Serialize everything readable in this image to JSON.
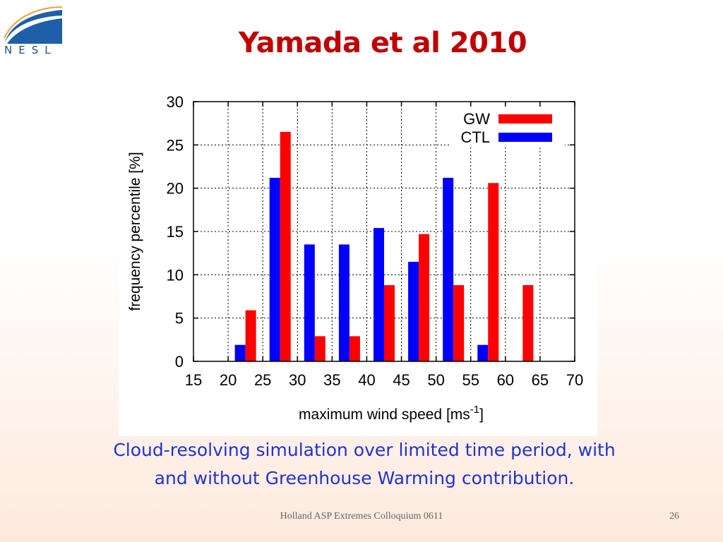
{
  "logo": {
    "text": "NESL"
  },
  "slide": {
    "title": "Yamada et al 2010",
    "caption_line1": "Cloud-resolving simulation over limited time period, with",
    "caption_line2": "and without Greenhouse Warming contribution.",
    "footer": "Holland ASP Extremes Colloquium 0611",
    "page_number": "26"
  },
  "colors": {
    "title": "#c00000",
    "caption": "#2233cc",
    "gw": "#ff0000",
    "ctl": "#0000ff"
  },
  "chart_data": {
    "type": "bar",
    "title": "",
    "xlabel": "maximum wind speed [ms",
    "xlabel_superscript": "-1",
    "xlabel_suffix": "]",
    "ylabel": "frequency percentile [%]",
    "xlim": [
      15,
      70
    ],
    "ylim": [
      0,
      30
    ],
    "xticks": [
      15,
      20,
      25,
      30,
      35,
      40,
      45,
      50,
      55,
      60,
      65,
      70
    ],
    "yticks": [
      0,
      5,
      10,
      15,
      20,
      25,
      30
    ],
    "grid": true,
    "legend_position": "top-right",
    "bin_centers": [
      22.5,
      27.5,
      32.5,
      37.5,
      42.5,
      47.5,
      52.5,
      57.5,
      62.5
    ],
    "series": [
      {
        "name": "GW",
        "color": "#ff0000",
        "values": [
          5.9,
          26.5,
          2.9,
          2.9,
          8.8,
          14.7,
          8.8,
          20.6,
          8.8
        ]
      },
      {
        "name": "CTL",
        "color": "#0000ff",
        "values": [
          1.9,
          21.2,
          13.5,
          13.5,
          15.4,
          11.5,
          21.2,
          1.9,
          0
        ]
      }
    ]
  }
}
